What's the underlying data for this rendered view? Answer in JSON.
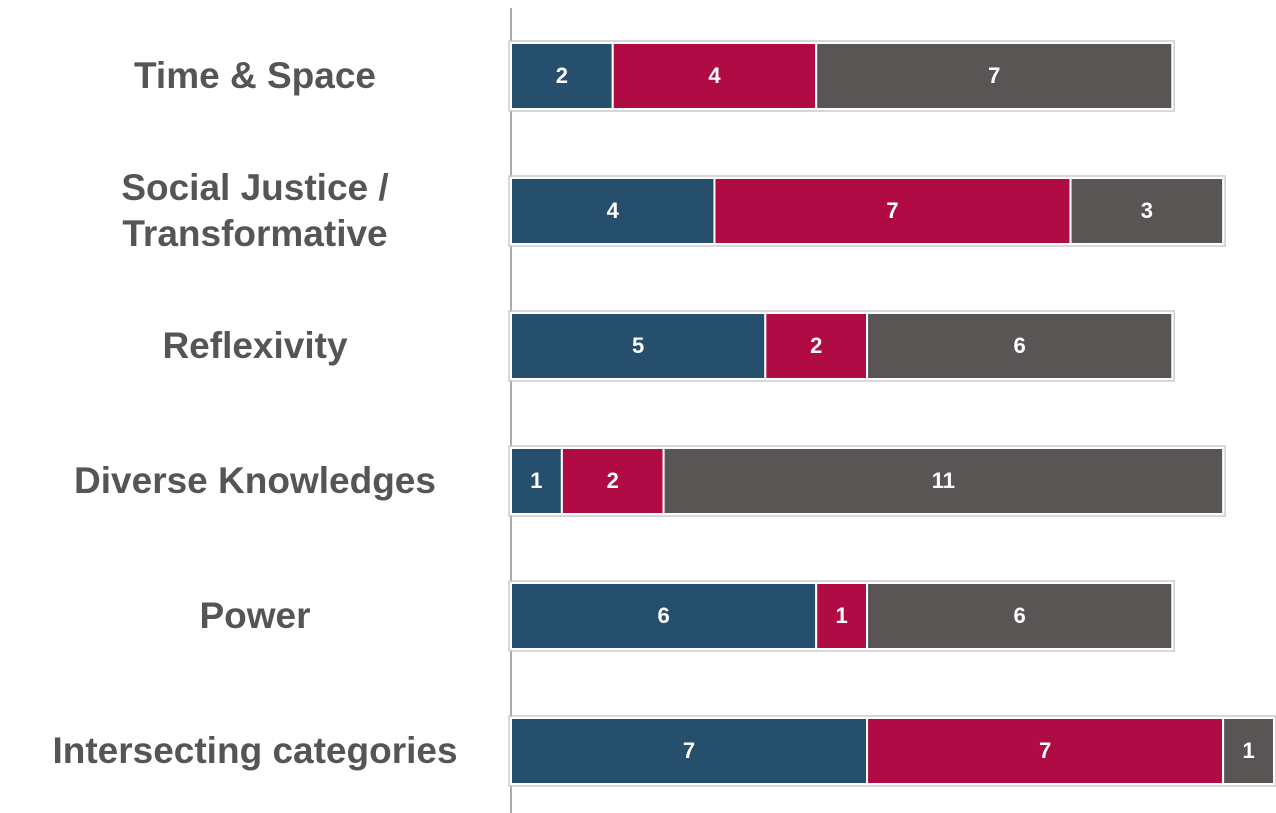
{
  "chart_data": {
    "type": "stacked-bar-horizontal",
    "categories": [
      "Time & Space",
      "Social Justice / Transformative",
      "Reflexivity",
      "Diverse Knowledges",
      "Power",
      "Intersecting categories"
    ],
    "series": [
      {
        "color": "#264f6e",
        "values": [
          2,
          4,
          5,
          1,
          6,
          7
        ]
      },
      {
        "color": "#b00b45",
        "values": [
          4,
          7,
          2,
          2,
          1,
          7
        ]
      },
      {
        "color": "#5a5555",
        "values": [
          7,
          3,
          6,
          11,
          6,
          1
        ]
      }
    ],
    "xlim": [
      0,
      15
    ]
  }
}
